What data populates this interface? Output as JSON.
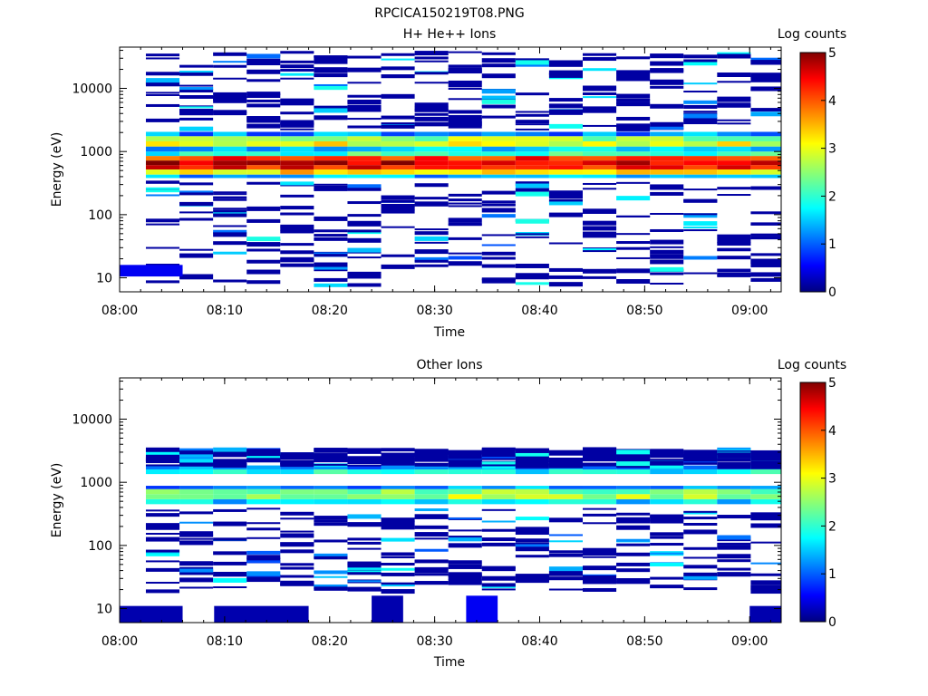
{
  "figure": {
    "title": "RPCICA150219T08.PNG"
  },
  "colorbar": {
    "label": "Log counts",
    "ticks": [
      "0",
      "1",
      "2",
      "3",
      "4",
      "5"
    ],
    "range": [
      0,
      5
    ],
    "colormap": [
      "#000080",
      "#0000ff",
      "#00ffff",
      "#ffff00",
      "#ff0000",
      "#800000"
    ]
  },
  "chart_data": [
    {
      "type": "heatmap",
      "title": "H+ He++ Ions",
      "xlabel": "Time",
      "ylabel": "Energy (eV)",
      "x_ticks": [
        "08:00",
        "08:10",
        "08:20",
        "08:30",
        "08:40",
        "08:50",
        "09:00"
      ],
      "y_ticks": [
        "10",
        "100",
        "1000",
        "10000"
      ],
      "y_scale": "log",
      "xlim": [
        "08:00",
        "09:03"
      ],
      "ylim": [
        6,
        45000
      ],
      "z_label": "Log counts",
      "zlim": [
        0,
        5
      ],
      "bands": [
        {
          "e_lo": 430,
          "e_hi": 520,
          "value": 3.3
        },
        {
          "e_lo": 520,
          "e_hi": 610,
          "value": 4.4
        },
        {
          "e_lo": 610,
          "e_hi": 720,
          "value": 4.6
        },
        {
          "e_lo": 720,
          "e_hi": 850,
          "value": 4.2
        },
        {
          "e_lo": 850,
          "e_hi": 1000,
          "value": 2.0
        },
        {
          "e_lo": 1000,
          "e_hi": 1200,
          "value": 1.5
        },
        {
          "e_lo": 1200,
          "e_hi": 1450,
          "value": 3.0
        },
        {
          "e_lo": 1450,
          "e_hi": 1750,
          "value": 2.6
        },
        {
          "e_lo": 1750,
          "e_hi": 2050,
          "value": 1.2
        },
        {
          "e_lo": 380,
          "e_hi": 430,
          "value": 1.4
        }
      ],
      "sparse_range": [
        [
          8,
          350
        ],
        [
          2300,
          42000
        ]
      ],
      "low_energy_patches": [
        {
          "t0": 8.0,
          "t1": 8.1,
          "e_lo": 10.5,
          "e_hi": 16,
          "value": 0.5
        }
      ]
    },
    {
      "type": "heatmap",
      "title": "Other Ions",
      "xlabel": "Time",
      "ylabel": "Energy (eV)",
      "x_ticks": [
        "08:00",
        "08:10",
        "08:20",
        "08:30",
        "08:40",
        "08:50",
        "09:00"
      ],
      "y_ticks": [
        "10",
        "100",
        "1000",
        "10000"
      ],
      "y_scale": "log",
      "xlim": [
        "08:00",
        "09:03"
      ],
      "ylim": [
        6,
        45000
      ],
      "z_label": "Log counts",
      "zlim": [
        0,
        5
      ],
      "bands": [
        {
          "e_lo": 450,
          "e_hi": 540,
          "value": 1.6
        },
        {
          "e_lo": 540,
          "e_hi": 650,
          "value": 2.7
        },
        {
          "e_lo": 650,
          "e_hi": 780,
          "value": 2.5
        },
        {
          "e_lo": 780,
          "e_hi": 880,
          "value": 1.2
        },
        {
          "e_lo": 1350,
          "e_hi": 1600,
          "value": 1.8
        },
        {
          "e_lo": 1600,
          "e_hi": 1850,
          "value": 1.3
        }
      ],
      "sparse_range": [
        [
          20,
          400
        ],
        [
          1900,
          3600
        ]
      ],
      "low_energy_patches": [
        {
          "t0": 8.0,
          "t1": 8.1,
          "e_lo": 6,
          "e_hi": 11,
          "value": 0.2
        },
        {
          "t0": 8.15,
          "t1": 8.3,
          "e_lo": 6,
          "e_hi": 11,
          "value": 0.2
        },
        {
          "t0": 8.4,
          "t1": 8.45,
          "e_lo": 6,
          "e_hi": 16,
          "value": 0.2
        },
        {
          "t0": 8.55,
          "t1": 8.6,
          "e_lo": 6,
          "e_hi": 16,
          "value": 0.5
        },
        {
          "t0": 9.0,
          "t1": 9.05,
          "e_lo": 6,
          "e_hi": 11,
          "value": 0.2
        }
      ]
    }
  ]
}
